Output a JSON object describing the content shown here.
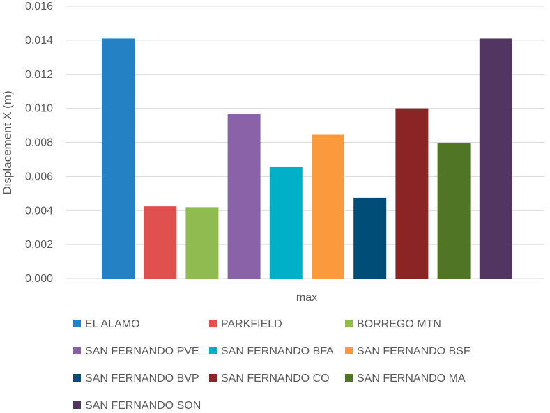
{
  "chart_data": {
    "type": "bar",
    "title": "",
    "xlabel": "",
    "ylabel": "Displacement X (m)",
    "categories": [
      "max"
    ],
    "ylim": [
      0,
      0.016
    ],
    "yticks": [
      "0.000",
      "0.002",
      "0.004",
      "0.006",
      "0.008",
      "0.010",
      "0.012",
      "0.014",
      "0.016"
    ],
    "grid": true,
    "legend_position": "bottom",
    "series": [
      {
        "name": "EL ALAMO",
        "values": [
          0.0141
        ],
        "color": "#2481c3"
      },
      {
        "name": "PARKFIELD",
        "values": [
          0.00425
        ],
        "color": "#e0504e"
      },
      {
        "name": "BORREGO MTN",
        "values": [
          0.0042
        ],
        "color": "#8fbb50"
      },
      {
        "name": "SAN FERNANDO PVE",
        "values": [
          0.0097
        ],
        "color": "#8a62a8"
      },
      {
        "name": "SAN FERNANDO BFA",
        "values": [
          0.00655
        ],
        "color": "#00afc8"
      },
      {
        "name": "SAN FERNANDO BSF",
        "values": [
          0.00845
        ],
        "color": "#fb9a3c"
      },
      {
        "name": "SAN FERNANDO BVP",
        "values": [
          0.00475
        ],
        "color": "#004e78"
      },
      {
        "name": "SAN FERNANDO CO",
        "values": [
          0.01
        ],
        "color": "#8b2525"
      },
      {
        "name": "SAN FERNANDO MA",
        "values": [
          0.00795
        ],
        "color": "#507524"
      },
      {
        "name": "SAN FERNANDO SON",
        "values": [
          0.0141
        ],
        "color": "#533562"
      }
    ]
  }
}
